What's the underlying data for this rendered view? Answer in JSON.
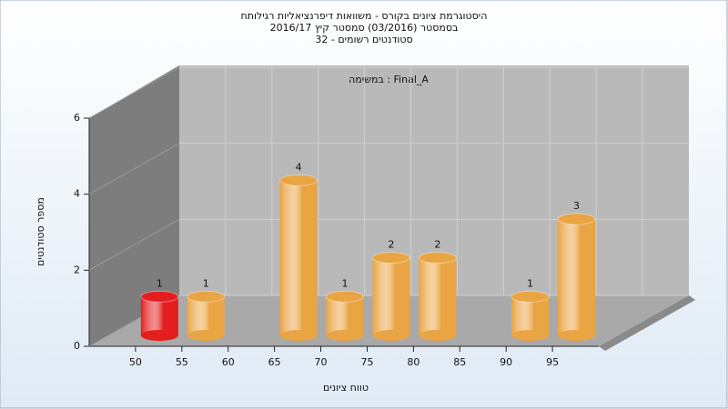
{
  "chart_data": {
    "type": "histogram",
    "title": [
      "היסטוגרמת ציונים בקורס - משוואות דיפרנציאליות רגילותח",
      "בסמסטר  (03/2016)  סמסטר קיץ 2016/17",
      "סטודנטים רשומים - 32"
    ],
    "annotation": "במשימה : Final_A",
    "xlabel": "טווח ציונים",
    "ylabel": "מספר סטודנטים",
    "bins": [
      50,
      55,
      60,
      65,
      70,
      75,
      80,
      85,
      90,
      95,
      100
    ],
    "values": [
      1,
      1,
      0,
      4,
      1,
      2,
      2,
      0,
      1,
      3
    ],
    "colors": [
      "#e41e1e",
      "#e9a443",
      "#e9a443",
      "#e9a443",
      "#e9a443",
      "#e9a443",
      "#e9a443",
      "#e9a443",
      "#e9a443",
      "#e9a443"
    ],
    "xlim": [
      45,
      100
    ],
    "xticks": [
      50,
      55,
      60,
      65,
      70,
      75,
      80,
      85,
      90,
      95
    ],
    "ylim": [
      0,
      6
    ],
    "yticks": [
      0,
      2,
      4,
      6
    ],
    "grid": true
  }
}
